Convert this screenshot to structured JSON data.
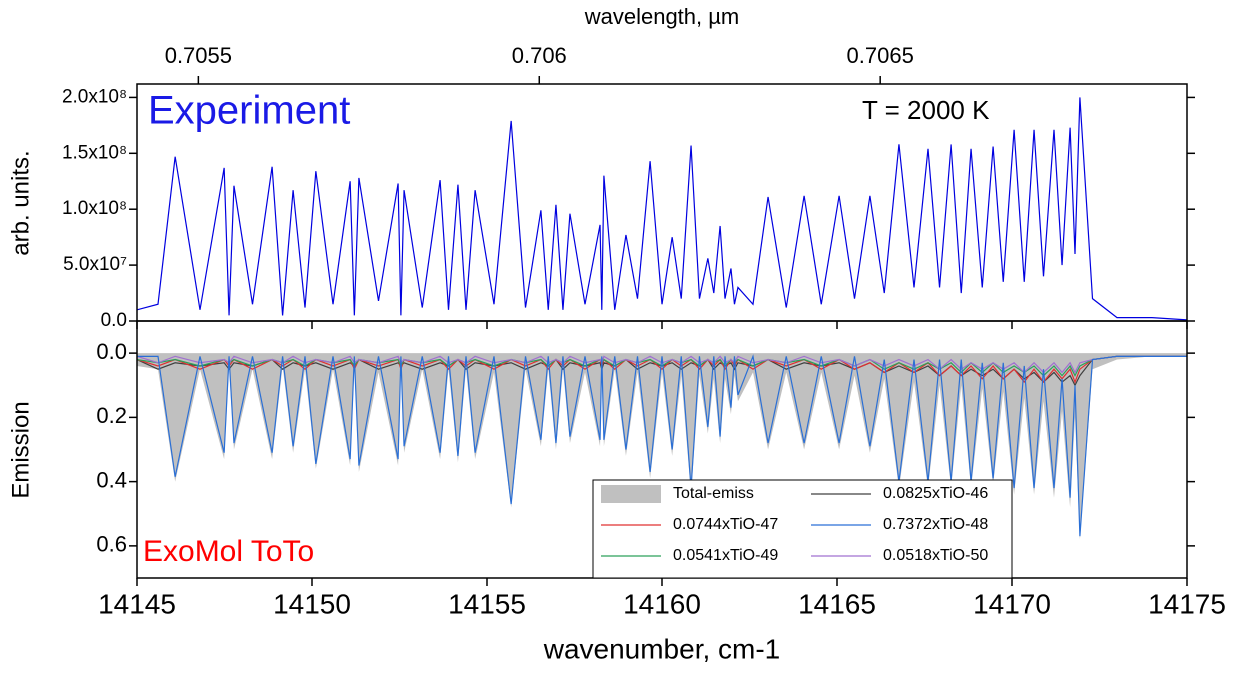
{
  "chart_data": [
    {
      "type": "line",
      "x2label": "wavelength, µm",
      "ylabel": "arb. units.",
      "annotations": [
        {
          "text": "Experiment",
          "color": "#1a1ae6"
        },
        {
          "text": "T = 2000 K",
          "color": "#000000"
        }
      ],
      "xlim": [
        14145,
        14175
      ],
      "x2lim": [
        0.70541,
        0.70695
      ],
      "x2ticks": [
        0.7055,
        0.706,
        0.7065
      ],
      "ylim": [
        0,
        212000000.0
      ],
      "yticks": [
        {
          "value": 0,
          "label": "0.0"
        },
        {
          "value": 50000000.0,
          "label": "5.0x10⁷"
        },
        {
          "value": 100000000.0,
          "label": "1.0x10⁸"
        },
        {
          "value": 150000000.0,
          "label": "1.5x10⁸"
        },
        {
          "value": 200000000.0,
          "label": "2.0x10⁸"
        }
      ],
      "color": "#0000e0",
      "x": [
        14145,
        14145.6,
        14146.09,
        14146.8,
        14147.49,
        14147.63,
        14147.77,
        14148.3,
        14148.86,
        14149.16,
        14149.46,
        14149.8,
        14150.11,
        14150.6,
        14151.09,
        14151.21,
        14151.34,
        14151.9,
        14152.46,
        14152.54,
        14152.63,
        14153.15,
        14153.66,
        14153.9,
        14154.17,
        14154.4,
        14154.66,
        14155.2,
        14155.69,
        14156.1,
        14156.54,
        14156.75,
        14156.97,
        14157.17,
        14157.37,
        14157.8,
        14158.23,
        14158.28,
        14158.34,
        14158.65,
        14158.97,
        14159.3,
        14159.66,
        14160.0,
        14160.29,
        14160.55,
        14160.83,
        14161.07,
        14161.31,
        14161.48,
        14161.66,
        14161.8,
        14161.97,
        14162.07,
        14162.17,
        14162.6,
        14163.03,
        14163.55,
        14164.06,
        14164.55,
        14165.06,
        14165.5,
        14165.94,
        14166.35,
        14166.77,
        14167.2,
        14167.6,
        14167.93,
        14168.26,
        14168.55,
        14168.83,
        14169.15,
        14169.46,
        14169.75,
        14170.06,
        14170.35,
        14170.63,
        14170.9,
        14171.2,
        14171.43,
        14171.66,
        14171.8,
        14171.94,
        14172.3,
        14173,
        14174,
        14175
      ],
      "values": [
        10000000.0,
        15000000.0,
        147000000.0,
        10000000.0,
        137000000.0,
        5000000.0,
        121000000.0,
        15000000.0,
        138000000.0,
        5000000.0,
        117000000.0,
        12000000.0,
        134000000.0,
        15000000.0,
        125000000.0,
        5000000.0,
        128000000.0,
        18000000.0,
        123000000.0,
        5000000.0,
        117000000.0,
        12000000.0,
        126000000.0,
        10000000.0,
        122000000.0,
        10000000.0,
        117000000.0,
        15000000.0,
        179000000.0,
        12000000.0,
        99000000.0,
        10000000.0,
        104000000.0,
        10000000.0,
        96000000.0,
        15000000.0,
        86000000.0,
        10000000.0,
        130000000.0,
        10000000.0,
        77000000.0,
        20000000.0,
        143000000.0,
        15000000.0,
        75000000.0,
        20000000.0,
        157000000.0,
        20000000.0,
        56000000.0,
        25000000.0,
        85000000.0,
        20000000.0,
        47000000.0,
        15000000.0,
        30000000.0,
        15000000.0,
        111000000.0,
        12000000.0,
        112000000.0,
        15000000.0,
        112000000.0,
        20000000.0,
        112000000.0,
        25000000.0,
        158000000.0,
        30000000.0,
        154000000.0,
        30000000.0,
        158000000.0,
        25000000.0,
        154000000.0,
        30000000.0,
        156000000.0,
        35000000.0,
        171000000.0,
        35000000.0,
        171000000.0,
        40000000.0,
        171000000.0,
        50000000.0,
        173000000.0,
        60000000.0,
        200000000.0,
        20000000.0,
        3000000.0,
        3000000.0,
        1000000.0
      ]
    },
    {
      "type": "line",
      "xlabel": "wavenumber, cm-1",
      "ylabel": "Emission",
      "annotations": [
        {
          "text": "ExoMol ToTo",
          "color": "#ff0000"
        }
      ],
      "xlim": [
        14145,
        14175
      ],
      "xticks": [
        14145,
        14150,
        14155,
        14160,
        14165,
        14170,
        14175
      ],
      "ylim": [
        0.7,
        -0.1
      ],
      "yticks": [
        {
          "value": 0,
          "label": "0.0"
        },
        0.2,
        0.4,
        0.6
      ],
      "legend": "lower right",
      "x": [
        14145,
        14145.6,
        14146.09,
        14146.8,
        14147.49,
        14147.63,
        14147.77,
        14148.3,
        14148.86,
        14149.16,
        14149.46,
        14149.8,
        14150.11,
        14150.6,
        14151.09,
        14151.21,
        14151.34,
        14151.9,
        14152.46,
        14152.54,
        14152.63,
        14153.15,
        14153.66,
        14153.9,
        14154.17,
        14154.4,
        14154.66,
        14155.2,
        14155.69,
        14156.1,
        14156.54,
        14156.75,
        14156.97,
        14157.17,
        14157.37,
        14157.8,
        14158.23,
        14158.28,
        14158.34,
        14158.65,
        14158.97,
        14159.3,
        14159.66,
        14160.0,
        14160.29,
        14160.55,
        14160.83,
        14161.07,
        14161.31,
        14161.48,
        14161.66,
        14161.8,
        14161.97,
        14162.07,
        14162.17,
        14162.6,
        14163.03,
        14163.55,
        14164.06,
        14164.55,
        14165.06,
        14165.5,
        14165.94,
        14166.35,
        14166.77,
        14167.2,
        14167.6,
        14167.93,
        14168.26,
        14168.55,
        14168.83,
        14169.15,
        14169.46,
        14169.75,
        14170.06,
        14170.35,
        14170.63,
        14170.9,
        14171.2,
        14171.43,
        14171.66,
        14171.8,
        14171.94,
        14172.3,
        14173,
        14174,
        14175
      ],
      "series": [
        {
          "name": "Total-emiss",
          "color": "#c0c0c0",
          "area": true,
          "values": [
            0.04,
            0.05,
            0.4,
            0.05,
            0.33,
            0.04,
            0.3,
            0.05,
            0.33,
            0.04,
            0.31,
            0.05,
            0.36,
            0.05,
            0.35,
            0.04,
            0.37,
            0.06,
            0.35,
            0.04,
            0.31,
            0.05,
            0.33,
            0.05,
            0.34,
            0.05,
            0.33,
            0.06,
            0.48,
            0.05,
            0.29,
            0.05,
            0.3,
            0.05,
            0.28,
            0.06,
            0.29,
            0.05,
            0.29,
            0.05,
            0.32,
            0.06,
            0.39,
            0.06,
            0.32,
            0.07,
            0.44,
            0.07,
            0.25,
            0.08,
            0.28,
            0.08,
            0.19,
            0.07,
            0.15,
            0.06,
            0.3,
            0.06,
            0.3,
            0.06,
            0.3,
            0.07,
            0.31,
            0.08,
            0.42,
            0.09,
            0.42,
            0.1,
            0.42,
            0.1,
            0.42,
            0.11,
            0.41,
            0.12,
            0.44,
            0.14,
            0.44,
            0.15,
            0.45,
            0.18,
            0.48,
            0.2,
            0.58,
            0.05,
            0.02,
            0.01,
            0.01
          ]
        },
        {
          "name": "0.0825xTiO-46",
          "color": "#404040",
          "values": [
            0.02,
            0.05,
            0.03,
            0.04,
            0.03,
            0.05,
            0.03,
            0.04,
            0.02,
            0.05,
            0.03,
            0.04,
            0.03,
            0.05,
            0.03,
            0.04,
            0.02,
            0.05,
            0.03,
            0.04,
            0.03,
            0.05,
            0.03,
            0.04,
            0.02,
            0.05,
            0.03,
            0.04,
            0.03,
            0.05,
            0.03,
            0.04,
            0.02,
            0.05,
            0.03,
            0.04,
            0.03,
            0.05,
            0.03,
            0.04,
            0.02,
            0.05,
            0.03,
            0.04,
            0.03,
            0.05,
            0.03,
            0.04,
            0.02,
            0.05,
            0.03,
            0.04,
            0.03,
            0.05,
            0.03,
            0.04,
            0.02,
            0.05,
            0.03,
            0.04,
            0.03,
            0.05,
            0.03,
            0.06,
            0.04,
            0.06,
            0.04,
            0.07,
            0.04,
            0.07,
            0.05,
            0.07,
            0.05,
            0.08,
            0.05,
            0.08,
            0.06,
            0.09,
            0.06,
            0.09,
            0.07,
            0.1,
            0.07,
            0.02,
            0.01,
            0.01,
            0.01
          ]
        },
        {
          "name": "0.0744xTiO-47",
          "color": "#e03030",
          "values": [
            0.02,
            0.04,
            0.02,
            0.05,
            0.02,
            0.04,
            0.02,
            0.05,
            0.02,
            0.04,
            0.02,
            0.05,
            0.02,
            0.04,
            0.02,
            0.05,
            0.02,
            0.04,
            0.02,
            0.05,
            0.02,
            0.04,
            0.02,
            0.05,
            0.02,
            0.04,
            0.02,
            0.05,
            0.02,
            0.04,
            0.02,
            0.05,
            0.02,
            0.04,
            0.02,
            0.05,
            0.02,
            0.04,
            0.02,
            0.05,
            0.02,
            0.04,
            0.02,
            0.05,
            0.02,
            0.04,
            0.02,
            0.05,
            0.02,
            0.04,
            0.02,
            0.05,
            0.02,
            0.04,
            0.02,
            0.05,
            0.02,
            0.04,
            0.02,
            0.05,
            0.02,
            0.05,
            0.03,
            0.06,
            0.03,
            0.06,
            0.03,
            0.07,
            0.04,
            0.07,
            0.04,
            0.08,
            0.04,
            0.08,
            0.05,
            0.09,
            0.05,
            0.09,
            0.05,
            0.08,
            0.05,
            0.09,
            0.05,
            0.02,
            0.01,
            0.01,
            0.01
          ]
        },
        {
          "name": "0.7372xTiO-48",
          "color": "#2a6fd6",
          "values": [
            0.01,
            0.01,
            0.385,
            0.01,
            0.31,
            0.01,
            0.28,
            0.01,
            0.31,
            0.01,
            0.29,
            0.01,
            0.345,
            0.01,
            0.33,
            0.01,
            0.35,
            0.01,
            0.33,
            0.01,
            0.29,
            0.01,
            0.31,
            0.01,
            0.32,
            0.01,
            0.31,
            0.01,
            0.47,
            0.01,
            0.27,
            0.01,
            0.28,
            0.01,
            0.26,
            0.01,
            0.27,
            0.01,
            0.27,
            0.01,
            0.3,
            0.01,
            0.37,
            0.01,
            0.3,
            0.01,
            0.42,
            0.01,
            0.23,
            0.01,
            0.26,
            0.01,
            0.17,
            0.01,
            0.13,
            0.01,
            0.28,
            0.01,
            0.28,
            0.01,
            0.28,
            0.01,
            0.29,
            0.02,
            0.4,
            0.02,
            0.4,
            0.02,
            0.4,
            0.02,
            0.4,
            0.03,
            0.39,
            0.03,
            0.42,
            0.04,
            0.42,
            0.05,
            0.42,
            0.08,
            0.45,
            0.1,
            0.57,
            0.02,
            0.01,
            0.01,
            0.01
          ]
        },
        {
          "name": "0.0541xTiO-49",
          "color": "#2ca05a",
          "values": [
            0.02,
            0.03,
            0.02,
            0.04,
            0.02,
            0.03,
            0.02,
            0.04,
            0.02,
            0.03,
            0.02,
            0.04,
            0.02,
            0.03,
            0.02,
            0.04,
            0.02,
            0.03,
            0.02,
            0.04,
            0.02,
            0.03,
            0.02,
            0.04,
            0.02,
            0.03,
            0.02,
            0.04,
            0.02,
            0.03,
            0.02,
            0.04,
            0.02,
            0.03,
            0.02,
            0.04,
            0.02,
            0.03,
            0.02,
            0.04,
            0.02,
            0.03,
            0.02,
            0.04,
            0.02,
            0.03,
            0.02,
            0.04,
            0.02,
            0.03,
            0.02,
            0.04,
            0.02,
            0.03,
            0.02,
            0.04,
            0.02,
            0.03,
            0.02,
            0.04,
            0.02,
            0.04,
            0.02,
            0.05,
            0.03,
            0.05,
            0.03,
            0.05,
            0.03,
            0.06,
            0.03,
            0.06,
            0.03,
            0.06,
            0.04,
            0.06,
            0.04,
            0.07,
            0.04,
            0.07,
            0.04,
            0.07,
            0.04,
            0.02,
            0.01,
            0.01,
            0.01
          ]
        },
        {
          "name": "0.0518xTiO-50",
          "color": "#a070d0",
          "values": [
            0.01,
            0.03,
            0.01,
            0.03,
            0.02,
            0.03,
            0.01,
            0.03,
            0.02,
            0.03,
            0.01,
            0.03,
            0.02,
            0.03,
            0.01,
            0.03,
            0.02,
            0.03,
            0.01,
            0.03,
            0.02,
            0.03,
            0.01,
            0.03,
            0.02,
            0.03,
            0.01,
            0.03,
            0.02,
            0.03,
            0.01,
            0.03,
            0.02,
            0.03,
            0.01,
            0.03,
            0.02,
            0.03,
            0.01,
            0.03,
            0.02,
            0.03,
            0.01,
            0.03,
            0.02,
            0.03,
            0.01,
            0.03,
            0.02,
            0.03,
            0.01,
            0.03,
            0.02,
            0.03,
            0.01,
            0.03,
            0.02,
            0.03,
            0.01,
            0.03,
            0.02,
            0.04,
            0.02,
            0.04,
            0.02,
            0.04,
            0.02,
            0.05,
            0.02,
            0.05,
            0.03,
            0.05,
            0.03,
            0.05,
            0.03,
            0.06,
            0.03,
            0.06,
            0.03,
            0.06,
            0.03,
            0.06,
            0.03,
            0.02,
            0.01,
            0.01,
            0.01
          ]
        }
      ]
    }
  ]
}
